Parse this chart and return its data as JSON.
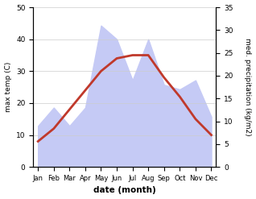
{
  "months": [
    "Jan",
    "Feb",
    "Mar",
    "Apr",
    "May",
    "Jun",
    "Jul",
    "Aug",
    "Sep",
    "Oct",
    "Nov",
    "Dec"
  ],
  "max_temp": [
    8,
    12,
    18,
    24,
    30,
    34,
    35,
    35,
    28,
    22,
    15,
    10
  ],
  "precipitation": [
    9,
    13,
    9,
    13,
    31,
    28,
    19,
    28,
    18,
    17,
    19,
    11
  ],
  "temp_color": "#c0392b",
  "precip_fill_color": "#c5caf5",
  "precip_edge_color": "#aab4e8",
  "temp_ylim": [
    0,
    50
  ],
  "precip_ylim": [
    0,
    35
  ],
  "xlabel": "date (month)",
  "ylabel_left": "max temp (C)",
  "ylabel_right": "med. precipitation (kg/m2)",
  "background_color": "#ffffff",
  "temp_linewidth": 2.0
}
